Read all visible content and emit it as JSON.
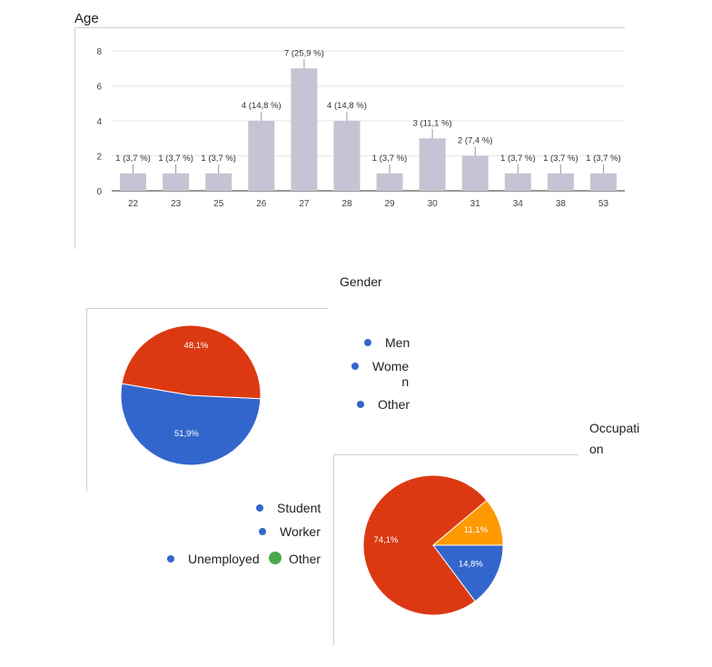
{
  "chart_data": [
    {
      "type": "bar",
      "title": "Age",
      "categories": [
        "22",
        "23",
        "25",
        "26",
        "27",
        "28",
        "29",
        "30",
        "31",
        "34",
        "38",
        "53"
      ],
      "values": [
        1,
        1,
        1,
        4,
        7,
        4,
        1,
        3,
        2,
        1,
        1,
        1
      ],
      "data_labels": [
        "1 (3,7 %)",
        "1 (3,7 %)",
        "1 (3,7 %)",
        "4 (14,8 %)",
        "7 (25,9 %)",
        "4 (14,8 %)",
        "1 (3,7 %)",
        "3 (11,1 %)",
        "2 (7,4 %)",
        "1 (3,7 %)",
        "1 (3,7 %)",
        "1 (3,7 %)"
      ],
      "ylim": [
        0,
        8
      ],
      "yticks": [
        "0",
        "2",
        "4",
        "6",
        "8"
      ],
      "grid": true,
      "bar_color": "#c7c3d4"
    },
    {
      "type": "pie",
      "title": "Gender",
      "labels": [
        "Men",
        "Wome\nn",
        "Other"
      ],
      "values": [
        51.9,
        48.1,
        0
      ],
      "slice_labels": [
        "51,9%",
        "48,1%",
        ""
      ],
      "colors": [
        "#3366cc",
        "#dc3912",
        "#ff9900"
      ],
      "legend_position": "right"
    },
    {
      "type": "pie",
      "title": "Occupati\non",
      "labels": [
        "Student",
        "Worker",
        "Unemployed",
        "Other"
      ],
      "values": [
        14.8,
        74.1,
        11.1,
        0
      ],
      "slice_labels": [
        "14,8%",
        "74,1%",
        "11,1%",
        ""
      ],
      "colors": [
        "#3366cc",
        "#dc3912",
        "#ff9900",
        "#109618"
      ],
      "legend_position": "left"
    }
  ]
}
